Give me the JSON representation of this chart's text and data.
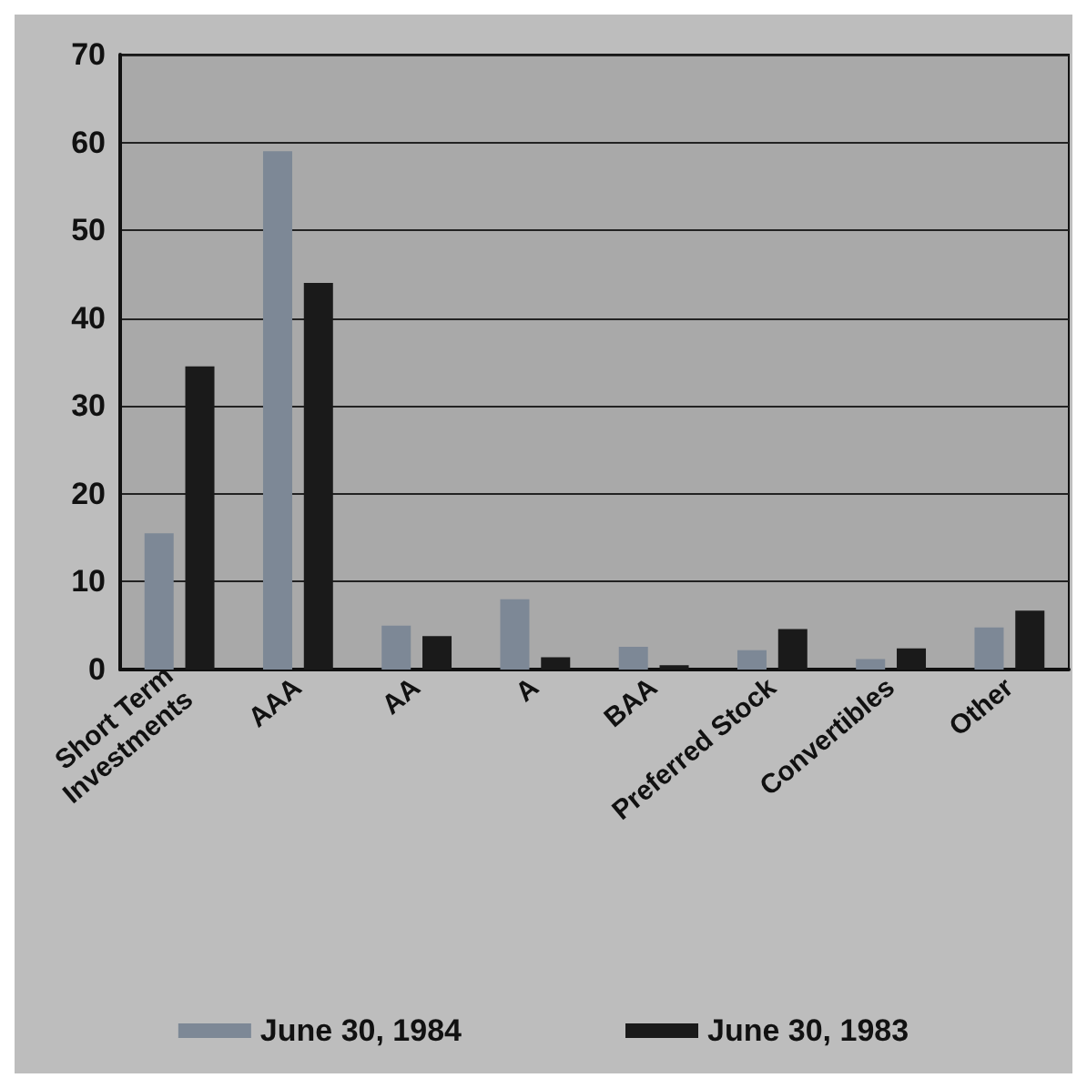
{
  "chart_data": {
    "type": "bar",
    "categories": [
      "Short Term\nInvestments",
      "AAA",
      "AA",
      "A",
      "BAA",
      "Preferred Stock",
      "Convertibles",
      "Other"
    ],
    "series": [
      {
        "name": "June 30, 1984",
        "color": "#7d8896",
        "values": [
          15.5,
          59,
          5,
          8,
          2.6,
          2.2,
          1.2,
          4.8
        ]
      },
      {
        "name": "June 30, 1983",
        "color": "#1a1a1a",
        "values": [
          34.5,
          44,
          3.8,
          1.4,
          0.5,
          4.6,
          2.4,
          6.7
        ]
      }
    ],
    "ylim": [
      0,
      70
    ],
    "yticks": [
      0,
      10,
      20,
      30,
      40,
      50,
      60,
      70
    ],
    "grid": "y",
    "legend": "bottom"
  }
}
